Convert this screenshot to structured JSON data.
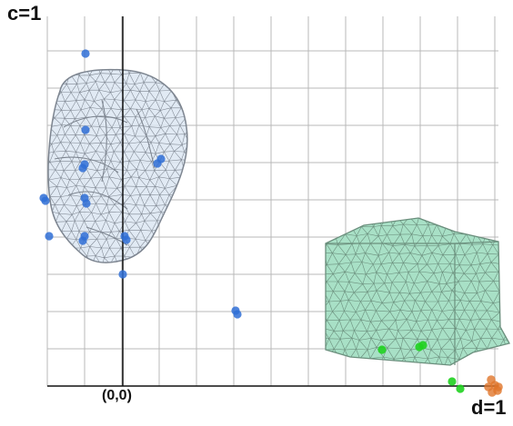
{
  "labels": {
    "c_axis": "c=1",
    "d_axis": "d=1",
    "origin": "(0,0)"
  },
  "colors": {
    "grid": "#b8b8b8",
    "axis": "#111111",
    "head_fill": "#dce6f2",
    "head_stroke": "#7d8590",
    "block_fill": "#a8e0c6",
    "block_stroke": "#6b8f7d",
    "blue_points": "#2f6fd6",
    "green_points": "#1fd11f",
    "orange_points": "#e0762b"
  },
  "icons": {
    "head_mesh": "human-head-wireframe-mesh",
    "block_mesh": "l-shaped-block-wireframe-mesh"
  }
}
